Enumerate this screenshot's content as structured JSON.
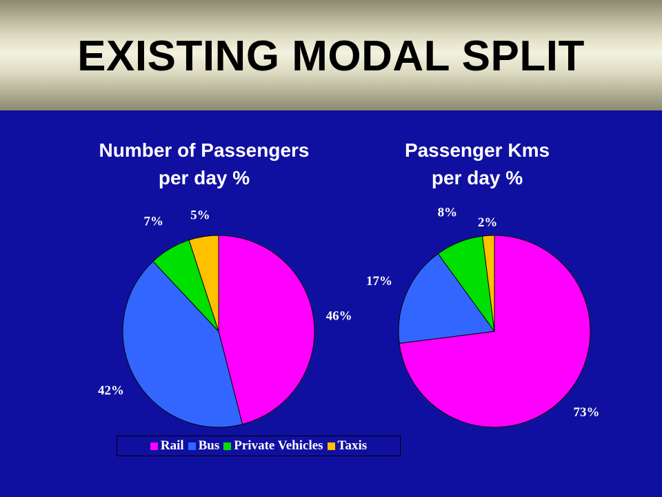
{
  "slide": {
    "title": "EXISTING MODAL SPLIT"
  },
  "legend": {
    "placement": "bottom-center",
    "entries": [
      {
        "label": "Rail",
        "color": "#ff00ff"
      },
      {
        "label": "Bus",
        "color": "#3366ff"
      },
      {
        "label": "Private Vehicles",
        "color": "#00e000"
      },
      {
        "label": "Taxis",
        "color": "#ffc000"
      }
    ]
  },
  "chart_data": [
    {
      "type": "pie",
      "title_lines": [
        "Number of Passengers",
        "per day %"
      ],
      "categories": [
        "Rail",
        "Bus",
        "Private Vehicles",
        "Taxis"
      ],
      "values": [
        46,
        42,
        7,
        5
      ],
      "labels": [
        "46%",
        "42%",
        "7%",
        "5%"
      ],
      "colors": [
        "#ff00ff",
        "#3366ff",
        "#00e000",
        "#ffc000"
      ]
    },
    {
      "type": "pie",
      "title_lines": [
        "Passenger Kms",
        "per day %"
      ],
      "categories": [
        "Rail",
        "Bus",
        "Private Vehicles",
        "Taxis"
      ],
      "values": [
        73,
        17,
        8,
        2
      ],
      "labels": [
        "73%",
        "17%",
        "8%",
        "2%"
      ],
      "colors": [
        "#ff00ff",
        "#3366ff",
        "#00e000",
        "#ffc000"
      ]
    }
  ]
}
